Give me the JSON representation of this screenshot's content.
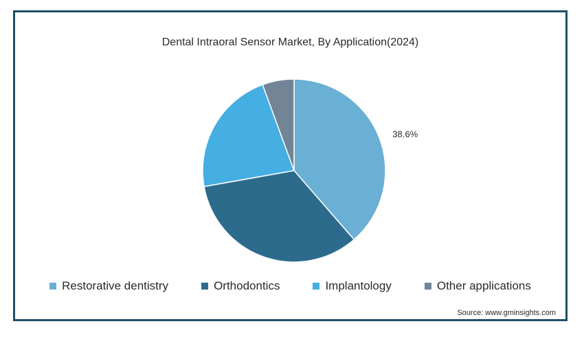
{
  "chart_data": {
    "type": "pie",
    "title": "Dental Intraoral Sensor Market, By Application(2024)",
    "categories": [
      "Restorative dentistry",
      "Orthodontics",
      "Implantology",
      "Other applications"
    ],
    "values": [
      38.6,
      33.6,
      22.2,
      5.6
    ],
    "data_labels": [
      "38.6%",
      null,
      null,
      null
    ],
    "colors": [
      "#6aafd4",
      "#2d6b8c",
      "#45aee2",
      "#738496"
    ],
    "legend_position": "bottom"
  },
  "source": "Source: www.gminsights.com"
}
